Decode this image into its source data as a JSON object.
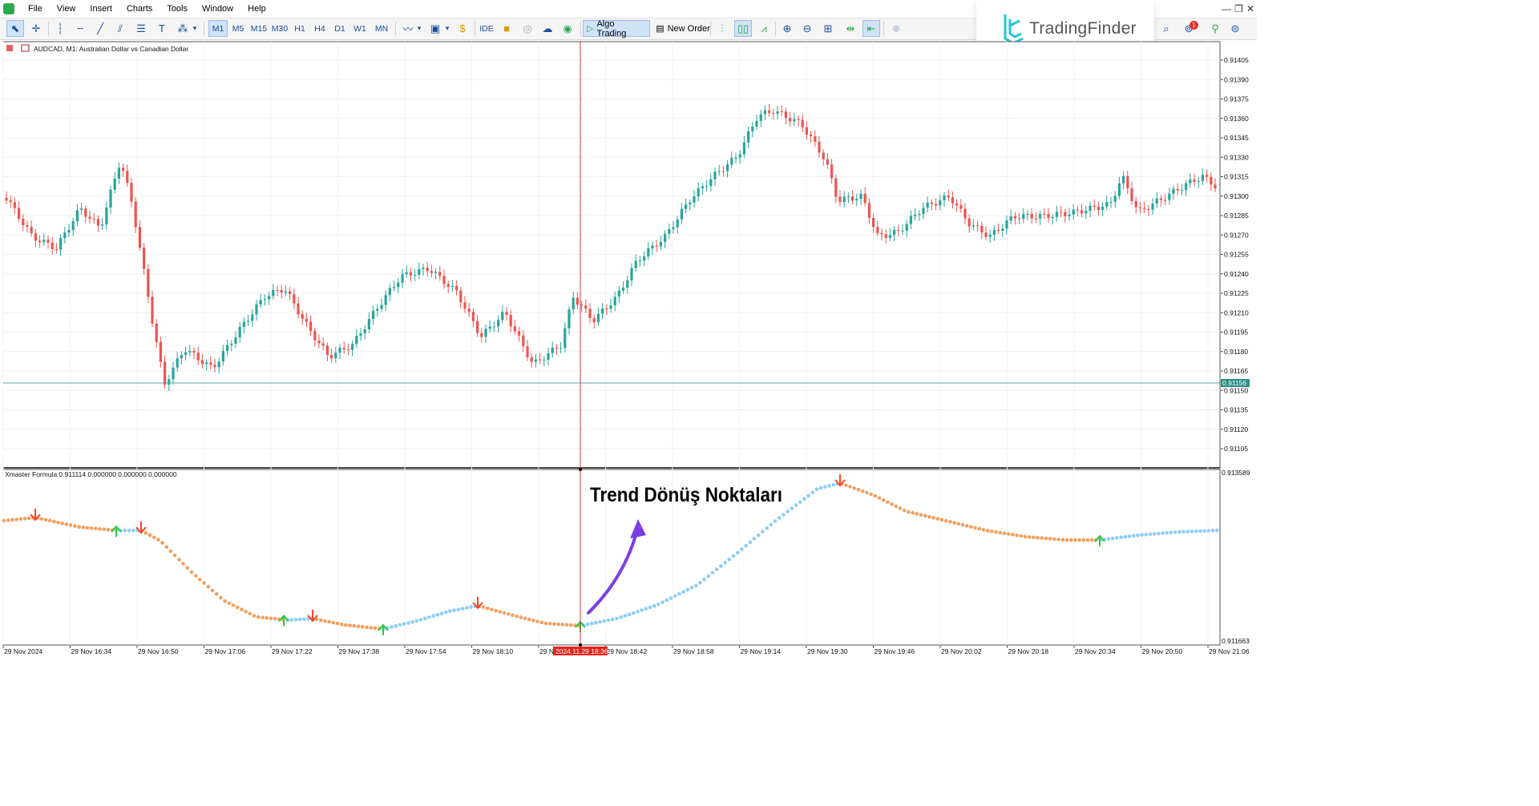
{
  "menu": [
    "File",
    "View",
    "Insert",
    "Charts",
    "Tools",
    "Window",
    "Help"
  ],
  "window_controls": {
    "minimize": "—",
    "maximize": "❐",
    "close": "✕"
  },
  "toolbar": {
    "timeframes": [
      "M1",
      "M5",
      "M15",
      "M30",
      "H1",
      "H4",
      "D1",
      "W1",
      "MN"
    ],
    "active_timeframe": "M1",
    "ide_label": "IDE",
    "algo_trading_label": "Algo Trading",
    "new_order_label": "New Order",
    "notification_count": "1"
  },
  "logo": {
    "text": "TradingFinder",
    "color": "#22c7d6"
  },
  "chart": {
    "title": "AUDCAD, M1:  Australian Dollar vs Canadian Dollar",
    "price_ticks": [
      "0.91405",
      "0.91390",
      "0.91375",
      "0.91360",
      "0.91345",
      "0.91330",
      "0.91315",
      "0.91300",
      "0.91285",
      "0.91270",
      "0.91255",
      "0.91240",
      "0.91225",
      "0.91210",
      "0.91195",
      "0.91180",
      "0.91165",
      "0.91150",
      "0.91135",
      "0.91120",
      "0.91105"
    ],
    "current_price": "0.91156",
    "colors": {
      "bull": "#26a69a",
      "bear": "#ef5350",
      "price_line": "#5aa6a0",
      "crosshair": "#d23c3c"
    }
  },
  "indicator": {
    "label": "Xmaster Formula 0.911114 0.000000 0.000000 0.000000",
    "scale_top": "0.913589",
    "scale_bottom": "0.911663",
    "annotation": "Trend Dönüş Noktaları",
    "colors": {
      "up": "#8ecdf5",
      "down": "#f0a060",
      "arrow_up": "#2ecc40",
      "arrow_down": "#ff4422",
      "annotation_arrow": "#7b3fe4"
    }
  },
  "time_axis": {
    "labels": [
      "29 Nov 2024",
      "29 Nov 16:34",
      "29 Nov 16:50",
      "29 Nov 17:06",
      "29 Nov 17:22",
      "29 Nov 17:38",
      "29 Nov 17:54",
      "29 Nov 18:10",
      "29 N",
      "29 Nov 18:42",
      "29 Nov 18:58",
      "29 Nov 19:14",
      "29 Nov 19:30",
      "29 Nov 19:46",
      "29 Nov 20:02",
      "29 Nov 20:18",
      "29 Nov 20:34",
      "29 Nov 20:50",
      "29 Nov 21:06"
    ],
    "crosshair_time": "2024.11.29 18:36"
  }
}
